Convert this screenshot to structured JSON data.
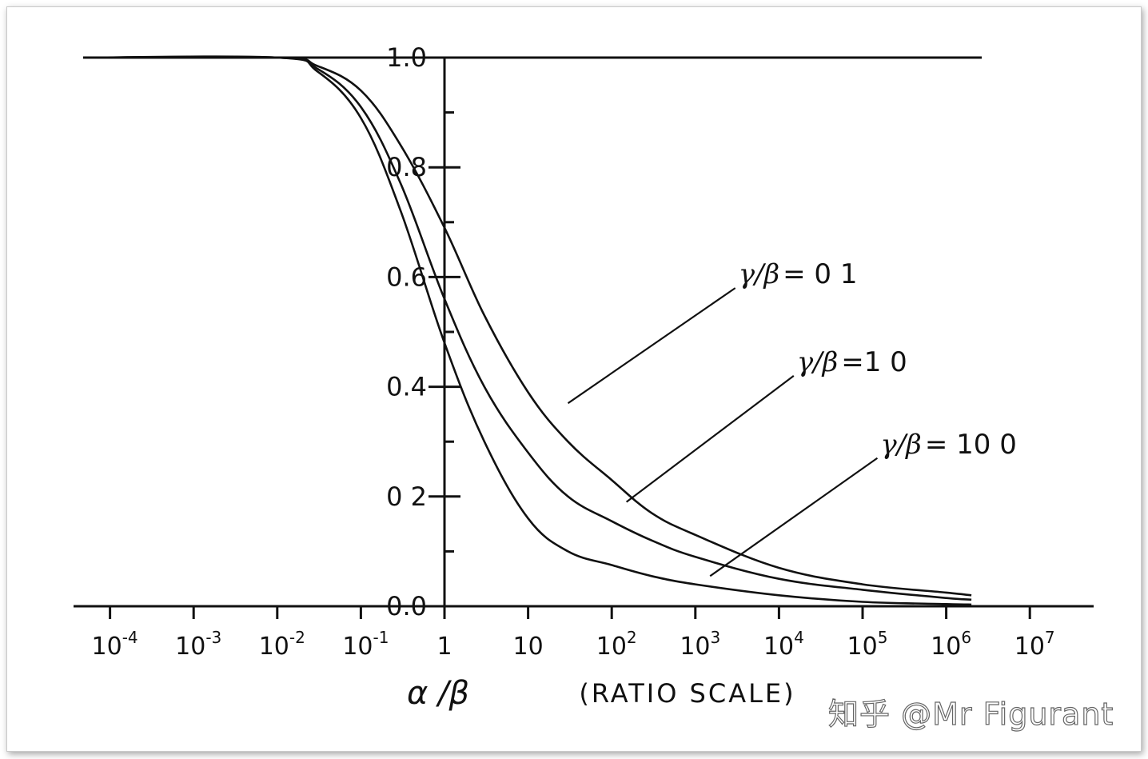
{
  "chart_data": {
    "type": "line",
    "x_scale": "log",
    "xlim": [
      3e-05,
      50000000
    ],
    "ylim": [
      0.0,
      1.0
    ],
    "x_ticks": [
      {
        "value": 0.0001,
        "label": "10",
        "exp": "-4"
      },
      {
        "value": 0.001,
        "label": "10",
        "exp": "-3"
      },
      {
        "value": 0.01,
        "label": "10",
        "exp": "-2"
      },
      {
        "value": 0.1,
        "label": "10",
        "exp": "-1"
      },
      {
        "value": 1,
        "label": "1",
        "exp": ""
      },
      {
        "value": 10,
        "label": "10",
        "exp": ""
      },
      {
        "value": 100,
        "label": "10",
        "exp": "2"
      },
      {
        "value": 1000,
        "label": "10",
        "exp": "3"
      },
      {
        "value": 10000,
        "label": "10",
        "exp": "4"
      },
      {
        "value": 100000,
        "label": "10",
        "exp": "5"
      },
      {
        "value": 1000000,
        "label": "10",
        "exp": "6"
      },
      {
        "value": 10000000,
        "label": "10",
        "exp": "7"
      }
    ],
    "y_ticks": [
      {
        "value": 1.0,
        "label": "1.0"
      },
      {
        "value": 0.8,
        "label": "0.8"
      },
      {
        "value": 0.6,
        "label": "0.6"
      },
      {
        "value": 0.4,
        "label": "0.4"
      },
      {
        "value": 0.2,
        "label": "0 2"
      },
      {
        "value": 0.0,
        "label": "0.0"
      }
    ],
    "xlabel": "α /β",
    "xlabel_note": "(RATIO SCALE)",
    "reference_line": {
      "y": 1.0
    },
    "series": [
      {
        "name": "γ/β = 0 1",
        "x": [
          5e-05,
          0.01,
          0.03,
          0.1,
          0.3,
          1,
          3,
          10,
          30,
          100,
          300,
          1000,
          10000,
          100000,
          1000000,
          2000000
        ],
        "y": [
          1.0,
          1.0,
          0.985,
          0.94,
          0.84,
          0.69,
          0.53,
          0.39,
          0.3,
          0.23,
          0.17,
          0.13,
          0.07,
          0.04,
          0.025,
          0.02
        ]
      },
      {
        "name": "γ/β=1 0",
        "x": [
          5e-05,
          0.01,
          0.03,
          0.1,
          0.3,
          1,
          3,
          10,
          30,
          100,
          300,
          1000,
          10000,
          100000,
          1000000,
          2000000
        ],
        "y": [
          1.0,
          1.0,
          0.98,
          0.91,
          0.77,
          0.56,
          0.4,
          0.28,
          0.2,
          0.155,
          0.12,
          0.09,
          0.05,
          0.03,
          0.015,
          0.012
        ]
      },
      {
        "name": "γ/β = 10 0",
        "x": [
          5e-05,
          0.01,
          0.03,
          0.1,
          0.3,
          1,
          3,
          10,
          30,
          100,
          300,
          1000,
          10000,
          100000,
          1000000,
          2000000
        ],
        "y": [
          1.0,
          1.0,
          0.975,
          0.89,
          0.72,
          0.48,
          0.3,
          0.16,
          0.1,
          0.075,
          0.055,
          0.04,
          0.02,
          0.008,
          0.004,
          0.003
        ]
      }
    ],
    "annotations": [
      {
        "text": "γ/β = 0 1",
        "greek": "γ/β",
        "rest": "= 0 1",
        "x": 30,
        "y": 0.37,
        "label_x": 3000,
        "label_y": 0.58
      },
      {
        "text": "γ/β=1 0",
        "greek": "γ/β",
        "rest": "=1 0",
        "x": 150,
        "y": 0.19,
        "label_x": 15000,
        "label_y": 0.42
      },
      {
        "text": "γ/β = 10 0",
        "greek": "γ/β",
        "rest": "= 10 0",
        "x": 1500,
        "y": 0.055,
        "label_x": 150000,
        "label_y": 0.27
      }
    ]
  },
  "watermark": "知乎 @Mr Figurant"
}
